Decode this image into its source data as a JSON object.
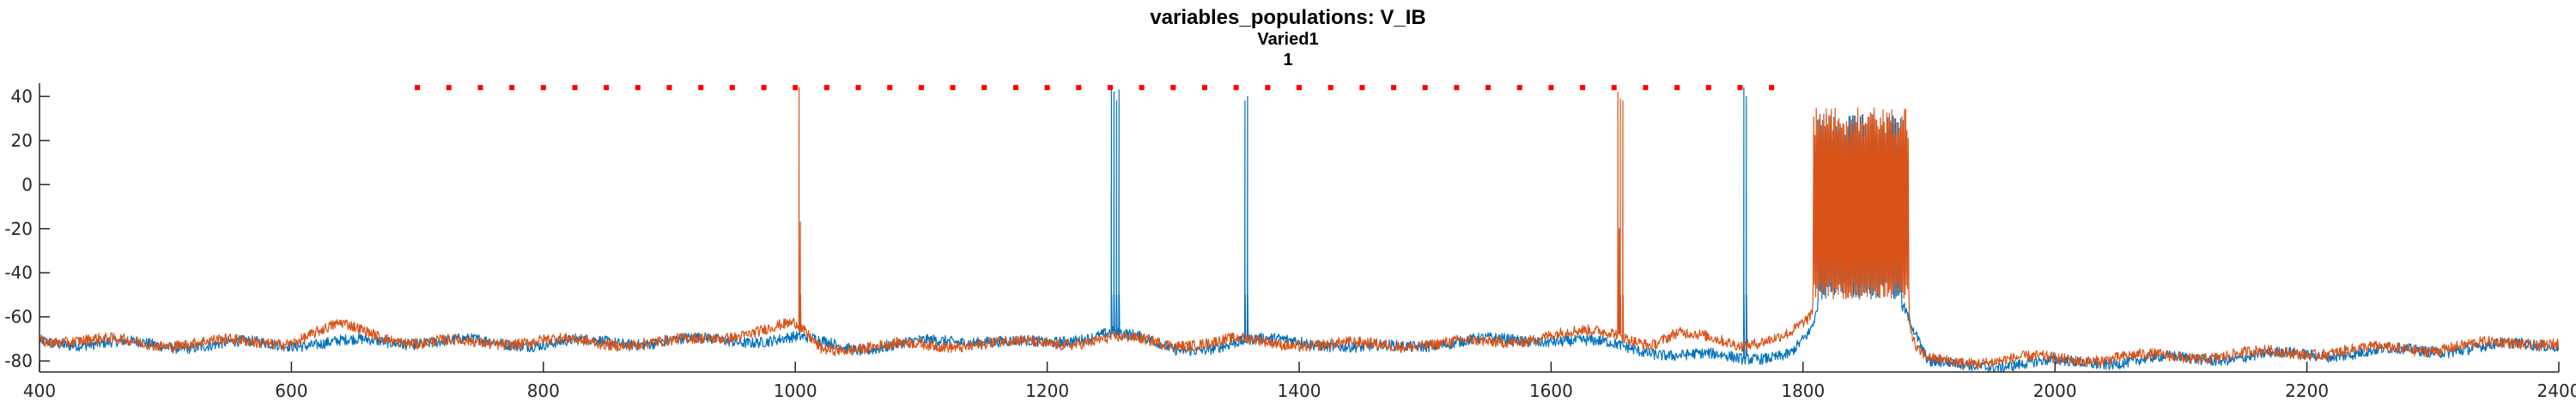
{
  "chart_data": {
    "type": "line",
    "title": "variables_populations: V_IB",
    "subtitle": "Varied1",
    "subtitle2": "1",
    "xlabel": "",
    "ylabel": "",
    "xlim": [
      400,
      2400
    ],
    "ylim": [
      -85,
      46
    ],
    "x_ticks": [
      400,
      600,
      800,
      1000,
      1200,
      1400,
      1600,
      1800,
      2000,
      2200,
      2400
    ],
    "y_ticks": [
      -80,
      -60,
      -40,
      -20,
      0,
      20,
      40
    ],
    "grid": false,
    "series": [
      {
        "color": "#0072BD",
        "baseline": [
          [
            400,
            -71
          ],
          [
            500,
            -73
          ],
          [
            600,
            -72
          ],
          [
            700,
            -71
          ],
          [
            800,
            -72
          ],
          [
            900,
            -71
          ],
          [
            1000,
            -70
          ],
          [
            1050,
            -74
          ],
          [
            1100,
            -72
          ],
          [
            1150,
            -70
          ],
          [
            1200,
            -73
          ],
          [
            1250,
            -66
          ],
          [
            1300,
            -75
          ],
          [
            1350,
            -72
          ],
          [
            1400,
            -70
          ],
          [
            1450,
            -75
          ],
          [
            1500,
            -72
          ],
          [
            1550,
            -71
          ],
          [
            1600,
            -70
          ],
          [
            1650,
            -73
          ],
          [
            1700,
            -77
          ],
          [
            1750,
            -79
          ],
          [
            1790,
            -76
          ],
          [
            1805,
            -68
          ],
          [
            1812,
            -58
          ],
          [
            1880,
            -55
          ],
          [
            1895,
            -76
          ],
          [
            1900,
            -82
          ],
          [
            2000,
            -81
          ],
          [
            2100,
            -79
          ],
          [
            2200,
            -77
          ],
          [
            2300,
            -75
          ],
          [
            2400,
            -72
          ]
        ],
        "spikes": [
          [
            1251,
            44
          ],
          [
            1253,
            42
          ],
          [
            1255,
            38
          ],
          [
            1257,
            43
          ],
          [
            1357,
            38
          ],
          [
            1359,
            40
          ],
          [
            1753,
            44
          ],
          [
            1755,
            40
          ]
        ],
        "burst": {
          "from": 1812,
          "to": 1878,
          "top": 32,
          "bottom": -52
        }
      },
      {
        "color": "#D95319",
        "baseline": [
          [
            400,
            -70
          ],
          [
            500,
            -72
          ],
          [
            600,
            -71
          ],
          [
            640,
            -64
          ],
          [
            700,
            -72
          ],
          [
            800,
            -71
          ],
          [
            900,
            -72
          ],
          [
            1000,
            -64
          ],
          [
            1020,
            -74
          ],
          [
            1100,
            -73
          ],
          [
            1150,
            -72
          ],
          [
            1200,
            -72
          ],
          [
            1250,
            -70
          ],
          [
            1300,
            -72
          ],
          [
            1350,
            -71
          ],
          [
            1400,
            -72
          ],
          [
            1450,
            -73
          ],
          [
            1500,
            -72
          ],
          [
            1550,
            -72
          ],
          [
            1600,
            -68
          ],
          [
            1650,
            -67
          ],
          [
            1680,
            -72
          ],
          [
            1700,
            -68
          ],
          [
            1750,
            -72
          ],
          [
            1790,
            -68
          ],
          [
            1805,
            -62
          ],
          [
            1812,
            -52
          ],
          [
            1878,
            -52
          ],
          [
            1890,
            -76
          ],
          [
            1900,
            -80
          ],
          [
            2000,
            -79
          ],
          [
            2100,
            -78
          ],
          [
            2200,
            -76
          ],
          [
            2300,
            -74
          ],
          [
            2400,
            -71
          ]
        ],
        "spikes": [
          [
            1003,
            44
          ],
          [
            1004,
            -17
          ],
          [
            1653,
            42
          ],
          [
            1655,
            39
          ],
          [
            1657,
            38
          ],
          [
            1654,
            -20
          ]
        ],
        "burst": {
          "from": 1808,
          "to": 1884,
          "top": 35,
          "bottom": -52
        }
      }
    ],
    "markers": {
      "color": "#FF0000",
      "y": 44,
      "x_start": 700,
      "x_end": 1775,
      "step": 25
    }
  }
}
